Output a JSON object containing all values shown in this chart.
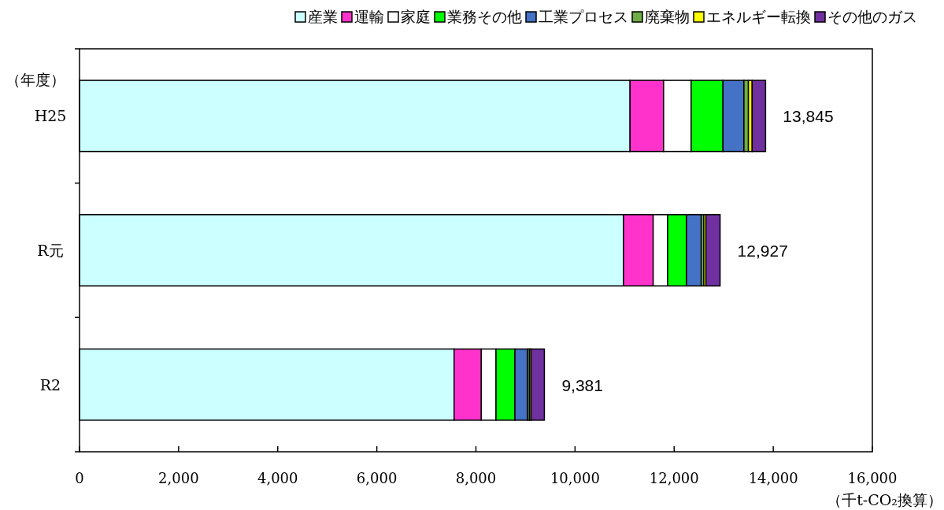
{
  "chart_data": {
    "type": "bar",
    "orientation": "horizontal",
    "stacked": true,
    "ylabel": "（年度）",
    "xlabel": "（千t-CO₂換算）",
    "categories": [
      "H25",
      "R元",
      "R2"
    ],
    "series": [
      {
        "name": "産業",
        "color": "#ccffff",
        "values": [
          11110,
          10978,
          7559
        ]
      },
      {
        "name": "運輸",
        "color": "#ff33cc",
        "values": [
          677,
          599,
          550
        ]
      },
      {
        "name": "家庭",
        "color": "#ffffff",
        "values": [
          556,
          291,
          297
        ]
      },
      {
        "name": "業務その他",
        "color": "#00ff00",
        "values": [
          642,
          381,
          381
        ]
      },
      {
        "name": "工業プロセス",
        "color": "#4472c4",
        "values": [
          423,
          297,
          254
        ]
      },
      {
        "name": "廃棄物",
        "color": "#70ad47",
        "values": [
          91,
          52,
          40
        ]
      },
      {
        "name": "エネルギー転換",
        "color": "#ffff00",
        "values": [
          75,
          43,
          30
        ]
      },
      {
        "name": "その他のガス",
        "color": "#7030a0",
        "values": [
          271,
          286,
          270
        ]
      }
    ],
    "totals": [
      "13,845",
      "12,927",
      "9,381"
    ],
    "xlim": [
      0,
      16000
    ],
    "xticks": [
      {
        "value": 0,
        "label": "0"
      },
      {
        "value": 2000,
        "label": "2,000"
      },
      {
        "value": 4000,
        "label": "4,000"
      },
      {
        "value": 6000,
        "label": "6,000"
      },
      {
        "value": 8000,
        "label": "8,000"
      },
      {
        "value": 10000,
        "label": "10,000"
      },
      {
        "value": 12000,
        "label": "12,000"
      },
      {
        "value": 14000,
        "label": "14,000"
      },
      {
        "value": 16000,
        "label": "16,000"
      }
    ],
    "legend": "top",
    "grid": false
  }
}
